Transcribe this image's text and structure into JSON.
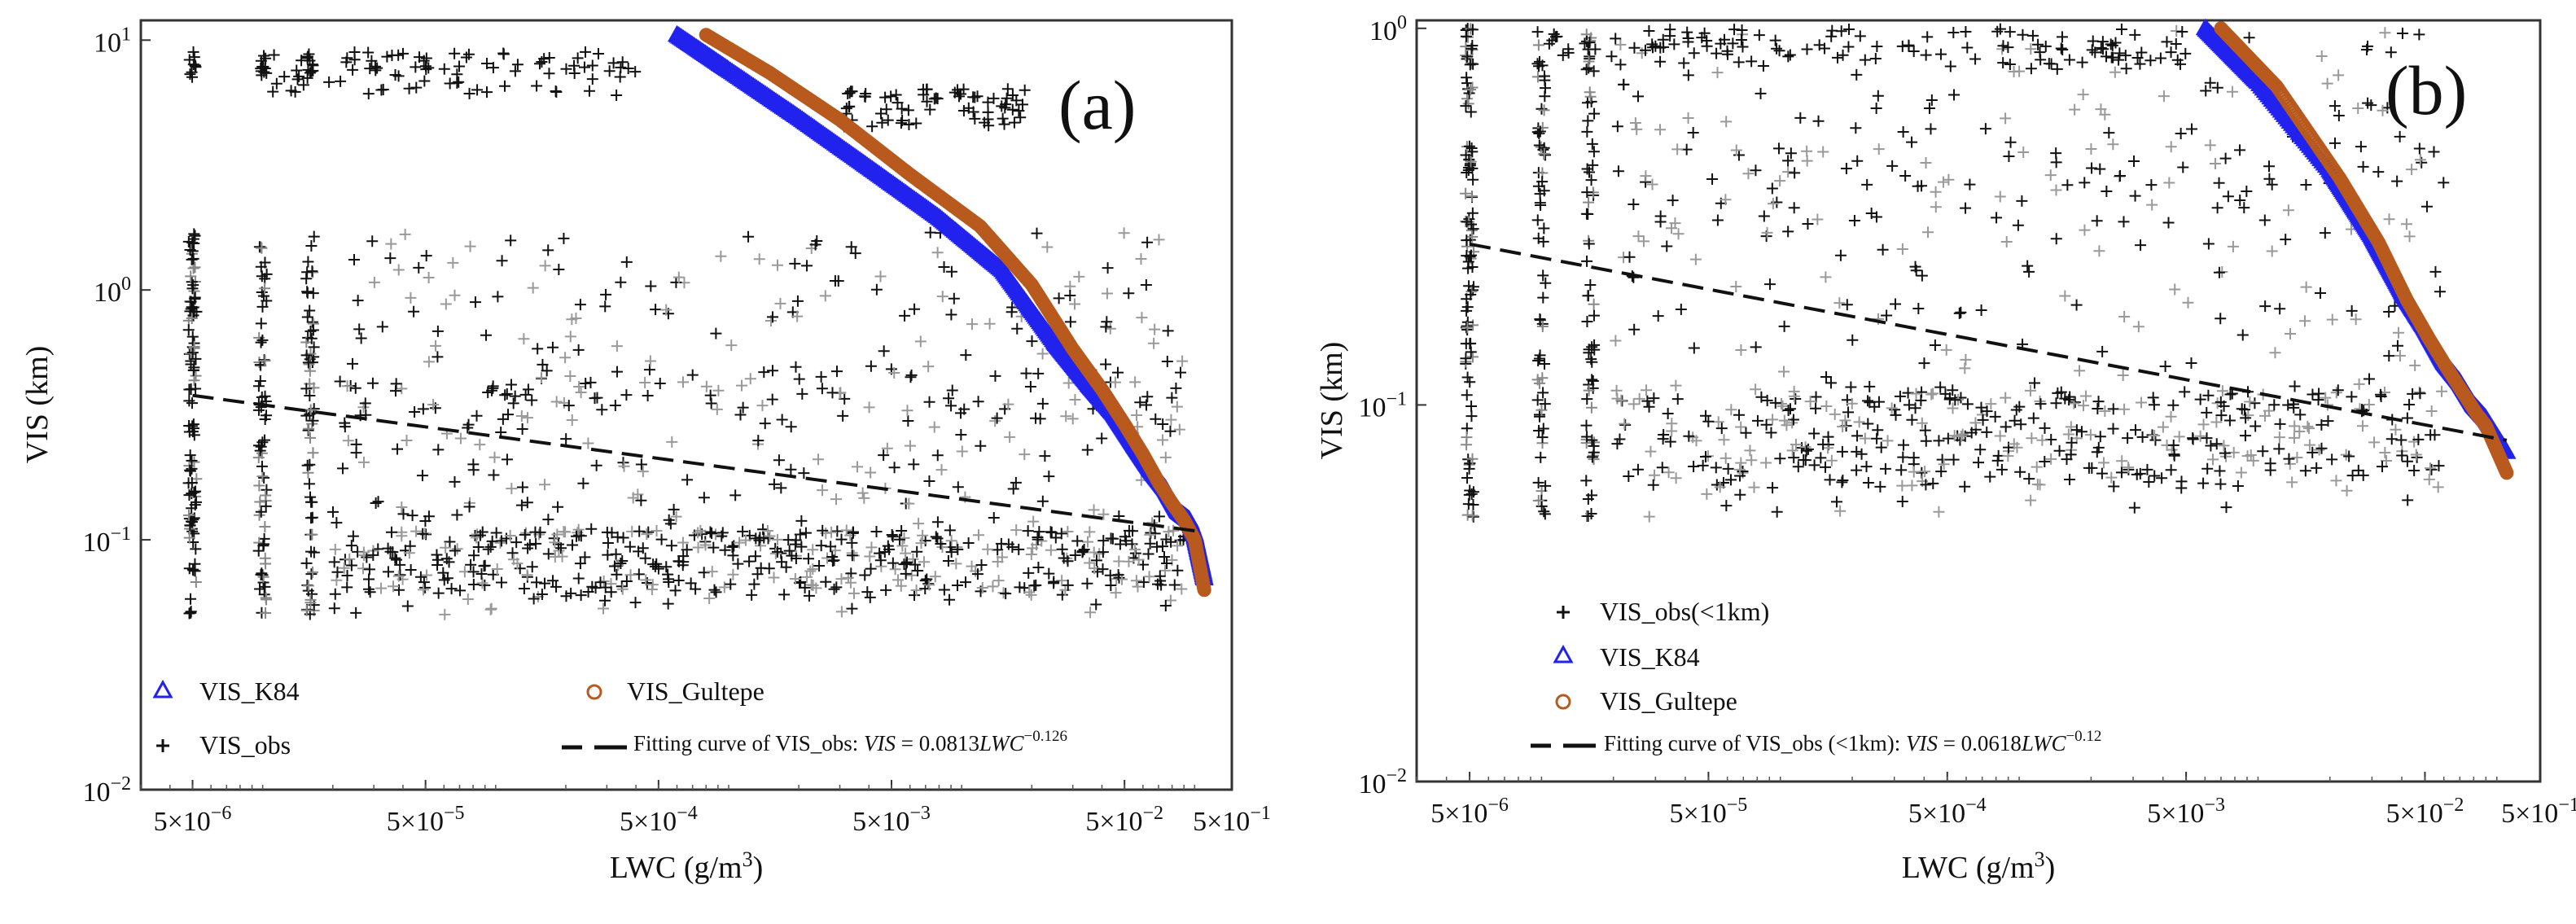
{
  "chart_data": [
    {
      "type": "scatter",
      "panel_label": "(a)",
      "xlabel": "LWC (g/m",
      "xlabel_sup": "3",
      "xlabel_end": ")",
      "ylabel": "VIS (km)",
      "xscale": "log",
      "yscale": "log",
      "xlim": [
        3e-06,
        0.12
      ],
      "ylim": [
        0.01,
        12
      ],
      "xticks": [
        {
          "value": 5e-06,
          "mant": "5×10",
          "exp": "−6"
        },
        {
          "value": 5e-05,
          "mant": "5×10",
          "exp": "−5"
        },
        {
          "value": 0.0005,
          "mant": "5×10",
          "exp": "−4"
        },
        {
          "value": 0.005,
          "mant": "5×10",
          "exp": "−3"
        },
        {
          "value": 0.05,
          "mant": "5×10",
          "exp": "−2"
        },
        {
          "value": 0.5,
          "mant": "5×10",
          "exp": "−1"
        }
      ],
      "yticks": [
        {
          "value": 0.01,
          "mant": "10",
          "exp": "−2"
        },
        {
          "value": 0.1,
          "mant": "10",
          "exp": "−1"
        },
        {
          "value": 1,
          "mant": "10",
          "exp": "0"
        },
        {
          "value": 10,
          "mant": "10",
          "exp": "1"
        }
      ],
      "series": [
        {
          "name": "VIS_K84",
          "marker": "triangle",
          "color": "#2222ee",
          "legend_label": "VIS_K84",
          "points": [
            [
              0.0006,
              10.5
            ],
            [
              0.001,
              7.6
            ],
            [
              0.002,
              4.9
            ],
            [
              0.004,
              3.1
            ],
            [
              0.008,
              1.95
            ],
            [
              0.015,
              1.2
            ],
            [
              0.025,
              0.62
            ],
            [
              0.035,
              0.42
            ],
            [
              0.045,
              0.32
            ],
            [
              0.055,
              0.24
            ],
            [
              0.065,
              0.19
            ],
            [
              0.075,
              0.16
            ],
            [
              0.085,
              0.13
            ],
            [
              0.095,
              0.12
            ],
            [
              0.1,
              0.105
            ],
            [
              0.11,
              0.07
            ]
          ]
        },
        {
          "name": "VIS_Gultepe",
          "marker": "circle",
          "color": "#b8591e",
          "legend_label": "VIS_Gultepe",
          "points": [
            [
              0.0008,
              10.5
            ],
            [
              0.0015,
              7.4
            ],
            [
              0.003,
              4.8
            ],
            [
              0.006,
              2.9
            ],
            [
              0.012,
              1.8
            ],
            [
              0.02,
              1.05
            ],
            [
              0.03,
              0.58
            ],
            [
              0.04,
              0.4
            ],
            [
              0.05,
              0.29
            ],
            [
              0.06,
              0.22
            ],
            [
              0.07,
              0.17
            ],
            [
              0.08,
              0.14
            ],
            [
              0.09,
              0.12
            ],
            [
              0.1,
              0.1
            ],
            [
              0.11,
              0.063
            ]
          ]
        },
        {
          "name": "VIS_obs",
          "marker": "plus",
          "color": "#111111",
          "legend_label": "VIS_obs"
        }
      ],
      "fit": {
        "legend_prefix": "Fitting curve of VIS_obs: ",
        "eq_lhs": "VIS",
        "eq_mid": " = 0.0813",
        "eq_var": "LWC",
        "eq_exp": "−0.126",
        "coef": 0.0813,
        "exponent": -0.126,
        "x_range": [
          5e-06,
          0.11
        ]
      },
      "obs_clusters": [
        {
          "x": 5e-06,
          "ymin": 0.05,
          "ymax": 1.7,
          "n": 90
        },
        {
          "x": 1e-05,
          "ymin": 0.05,
          "ymax": 1.6,
          "n": 80
        },
        {
          "x": 1.5e-05,
          "ymin": 0.05,
          "ymax": 1.5,
          "n": 60
        }
      ]
    },
    {
      "type": "scatter",
      "panel_label": "(b)",
      "xlabel": "LWC (g/m",
      "xlabel_sup": "3",
      "xlabel_end": ")",
      "ylabel": "VIS (km)",
      "xscale": "log",
      "yscale": "log",
      "xlim": [
        3e-06,
        0.12
      ],
      "ylim": [
        0.01,
        1.05
      ],
      "xticks": [
        {
          "value": 5e-06,
          "mant": "5×10",
          "exp": "−6"
        },
        {
          "value": 5e-05,
          "mant": "5×10",
          "exp": "−5"
        },
        {
          "value": 0.0005,
          "mant": "5×10",
          "exp": "−4"
        },
        {
          "value": 0.005,
          "mant": "5×10",
          "exp": "−3"
        },
        {
          "value": 0.05,
          "mant": "5×10",
          "exp": "−2"
        },
        {
          "value": 0.5,
          "mant": "5×10",
          "exp": "−1"
        }
      ],
      "yticks": [
        {
          "value": 0.01,
          "mant": "10",
          "exp": "−2"
        },
        {
          "value": 0.1,
          "mant": "10",
          "exp": "−1"
        },
        {
          "value": 1,
          "mant": "10",
          "exp": "0"
        }
      ],
      "series": [
        {
          "name": "VIS_obs(<1km)",
          "marker": "plus",
          "color": "#111111",
          "legend_label": "VIS_obs(<1km)"
        },
        {
          "name": "VIS_K84",
          "marker": "triangle",
          "color": "#2222ee",
          "legend_label": "VIS_K84",
          "points": [
            [
              0.006,
              1.0
            ],
            [
              0.01,
              0.72
            ],
            [
              0.02,
              0.42
            ],
            [
              0.03,
              0.28
            ],
            [
              0.04,
              0.2
            ],
            [
              0.05,
              0.16
            ],
            [
              0.06,
              0.13
            ],
            [
              0.07,
              0.115
            ],
            [
              0.08,
              0.1
            ],
            [
              0.09,
              0.092
            ],
            [
              0.11,
              0.075
            ]
          ]
        },
        {
          "name": "VIS_Gultepe",
          "marker": "circle",
          "color": "#b8591e",
          "legend_label": "VIS_Gultepe",
          "points": [
            [
              0.007,
              1.0
            ],
            [
              0.012,
              0.7
            ],
            [
              0.022,
              0.4
            ],
            [
              0.032,
              0.27
            ],
            [
              0.042,
              0.19
            ],
            [
              0.052,
              0.15
            ],
            [
              0.062,
              0.125
            ],
            [
              0.072,
              0.108
            ],
            [
              0.082,
              0.095
            ],
            [
              0.09,
              0.088
            ],
            [
              0.11,
              0.066
            ]
          ]
        }
      ],
      "fit": {
        "legend_prefix": "Fitting curve of VIS_obs (<1km): ",
        "eq_lhs": "VIS",
        "eq_mid": " = 0.0618",
        "eq_var": "LWC",
        "eq_exp": "−0.12",
        "coef": 0.0618,
        "exponent": -0.12,
        "x_range": [
          5e-06,
          0.11
        ]
      }
    }
  ]
}
